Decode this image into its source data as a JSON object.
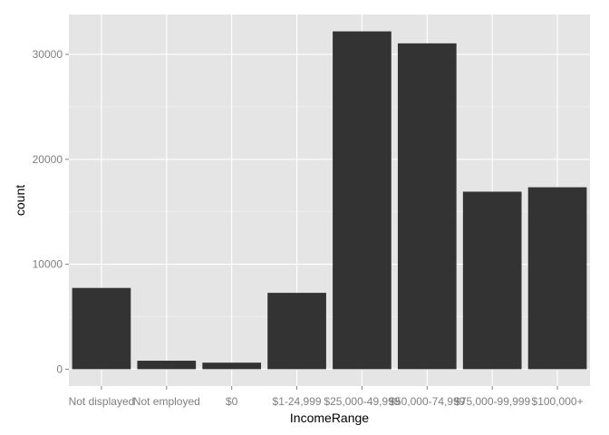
{
  "chart_data": {
    "type": "bar",
    "xlabel": "IncomeRange",
    "ylabel": "count",
    "categories": [
      "Not displayed",
      "Not employed",
      "$0",
      "$1-24,999",
      "$25,000-49,999",
      "$50,000-74,999",
      "$75,000-99,999",
      "$100,000+"
    ],
    "values": [
      7741,
      806,
      621,
      7274,
      32192,
      31050,
      16916,
      17337
    ],
    "ylim": [
      -1610,
      33800
    ],
    "yticks": [
      0,
      10000,
      20000,
      30000
    ],
    "yticklabels": [
      "0",
      "10000",
      "20000",
      "30000"
    ],
    "grid": true,
    "colors": {
      "panel_background": "#e5e5e5",
      "grid_major": "#ffffff",
      "grid_minor": "#f2f2f2",
      "bar_fill": "#333333",
      "tick_text": "#7f7f7f",
      "axis_title": "#000000"
    }
  }
}
